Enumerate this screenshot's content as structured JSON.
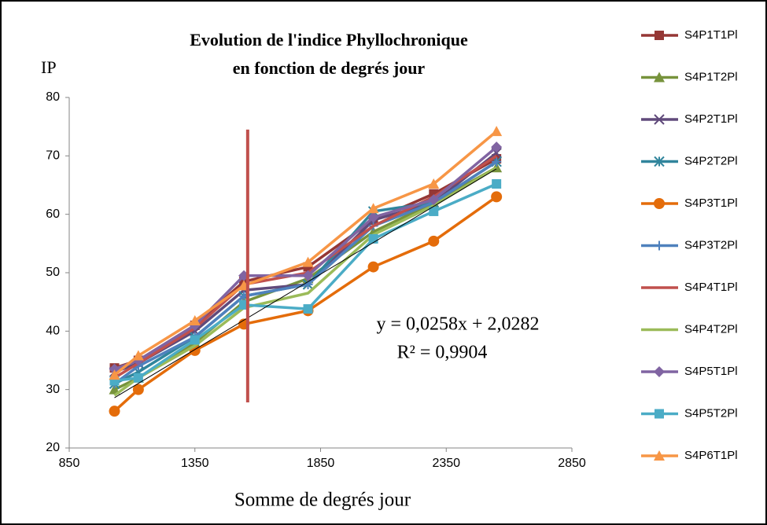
{
  "chart_data": {
    "type": "line",
    "title": [
      "Evolution de l'indice Phyllochronique",
      "en fonction de degrés jour"
    ],
    "ylabel": "IP",
    "xlabel": "Somme de degrés jour",
    "annotations": [
      "y = 0,0258x + 2,0282",
      "R² = 0,9904"
    ],
    "xlim": [
      850,
      2850
    ],
    "xticks": [
      850,
      1350,
      1850,
      2350,
      2850
    ],
    "ylim": [
      20,
      80
    ],
    "yticks": [
      20,
      30,
      40,
      50,
      60,
      70,
      80
    ],
    "grid": false,
    "legend": "right",
    "x": [
      1030,
      1125,
      1350,
      1545,
      1800,
      2060,
      2300,
      2550
    ],
    "series": [
      {
        "name": "S4P1T1Pl",
        "color": "#953735",
        "marker": "square",
        "values": [
          33.7,
          35,
          41,
          48.5,
          51,
          59,
          63.5,
          69.5
        ]
      },
      {
        "name": "S4P1T2Pl",
        "color": "#77933c",
        "marker": "triangle",
        "values": [
          30,
          32,
          38,
          45,
          49,
          57,
          62,
          68
        ]
      },
      {
        "name": "S4P2T1Pl",
        "color": "#604a7b",
        "marker": "x",
        "values": [
          33,
          34.5,
          40,
          47,
          48,
          59,
          62,
          70.5
        ]
      },
      {
        "name": "S4P2T2Pl",
        "color": "#31859c",
        "marker": "star",
        "values": [
          31,
          33,
          39,
          46,
          48,
          60.5,
          62,
          69
        ]
      },
      {
        "name": "S4P3T1Pl",
        "color": "#e46c0a",
        "marker": "circle",
        "values": [
          26.3,
          30,
          36.7,
          41.2,
          43.5,
          51,
          55.4,
          63
        ]
      },
      {
        "name": "S4P3T2Pl",
        "color": "#4f81bd",
        "marker": "plus",
        "values": [
          31,
          34,
          39,
          46,
          48,
          58,
          62,
          69
        ]
      },
      {
        "name": "S4P4T1Pl",
        "color": "#c0504d",
        "marker": "none",
        "values": [
          32,
          34.5,
          40.5,
          48,
          50,
          58,
          63,
          70
        ]
      },
      {
        "name": "S4P4T2Pl",
        "color": "#9bbb59",
        "marker": "none",
        "values": [
          29,
          32,
          37.5,
          44,
          46.5,
          56.5,
          61.5,
          68
        ]
      },
      {
        "name": "S4P5T1Pl",
        "color": "#8064a2",
        "marker": "diamond",
        "values": [
          33.5,
          35,
          41,
          49.5,
          49.5,
          59.5,
          62.5,
          71.5
        ]
      },
      {
        "name": "S4P5T2Pl",
        "color": "#4bacc6",
        "marker": "square",
        "values": [
          31.5,
          32,
          38.5,
          44.5,
          43.8,
          55.8,
          60.5,
          65.2
        ]
      },
      {
        "name": "S4P6T1Pl",
        "color": "#f79646",
        "marker": "triangle",
        "values": [
          32.5,
          35.8,
          41.8,
          47.8,
          51.8,
          61,
          65.2,
          74.2
        ]
      }
    ],
    "trendline": {
      "color": "#000000",
      "x": [
        1030,
        2550
      ],
      "values": [
        28.6,
        67.8
      ]
    },
    "vline": {
      "color": "#c0504d",
      "x": 1560,
      "values": [
        27.8,
        74.5
      ]
    }
  }
}
